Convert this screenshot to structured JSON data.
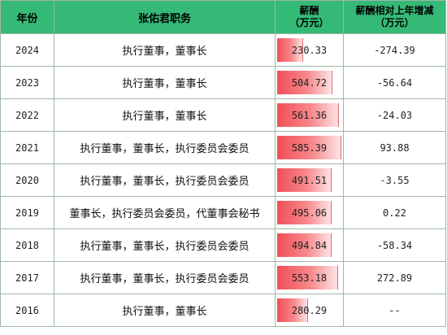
{
  "table": {
    "headers": {
      "year": "年份",
      "roles": "张佑君职务",
      "salary": [
        "薪酬",
        "（万元）"
      ],
      "change": [
        "薪酬相对上年增减",
        "（万元）"
      ]
    },
    "rows": [
      {
        "year": "2024",
        "roles": "执行董事，董事长",
        "salary": "230.33",
        "salary_value": 230.33,
        "change": "-274.39"
      },
      {
        "year": "2023",
        "roles": "执行董事，董事长",
        "salary": "504.72",
        "salary_value": 504.72,
        "change": "-56.64"
      },
      {
        "year": "2022",
        "roles": "执行董事，董事长",
        "salary": "561.36",
        "salary_value": 561.36,
        "change": "-24.03"
      },
      {
        "year": "2021",
        "roles": "执行董事，董事长，执行委员会委员",
        "salary": "585.39",
        "salary_value": 585.39,
        "change": "93.88"
      },
      {
        "year": "2020",
        "roles": "执行董事，董事长，执行委员会委员",
        "salary": "491.51",
        "salary_value": 491.51,
        "change": "-3.55"
      },
      {
        "year": "2019",
        "roles": "董事长，执行委员会委员，代董事会秘书",
        "salary": "495.06",
        "salary_value": 495.06,
        "change": "0.22"
      },
      {
        "year": "2018",
        "roles": "执行董事，董事长，执行委员会委员",
        "salary": "494.84",
        "salary_value": 494.84,
        "change": "-58.34"
      },
      {
        "year": "2017",
        "roles": "执行董事，董事长，执行委员会委员",
        "salary": "553.18",
        "salary_value": 553.18,
        "change": "272.89"
      },
      {
        "year": "2016",
        "roles": "执行董事，董事长",
        "salary": "280.29",
        "salary_value": 280.29,
        "change": "--"
      }
    ]
  },
  "colors": {
    "header_bg": "#35b977",
    "bar_start": "#f04f56",
    "bar_end": "#fde3e4",
    "grid": "#9fb7a7"
  }
}
